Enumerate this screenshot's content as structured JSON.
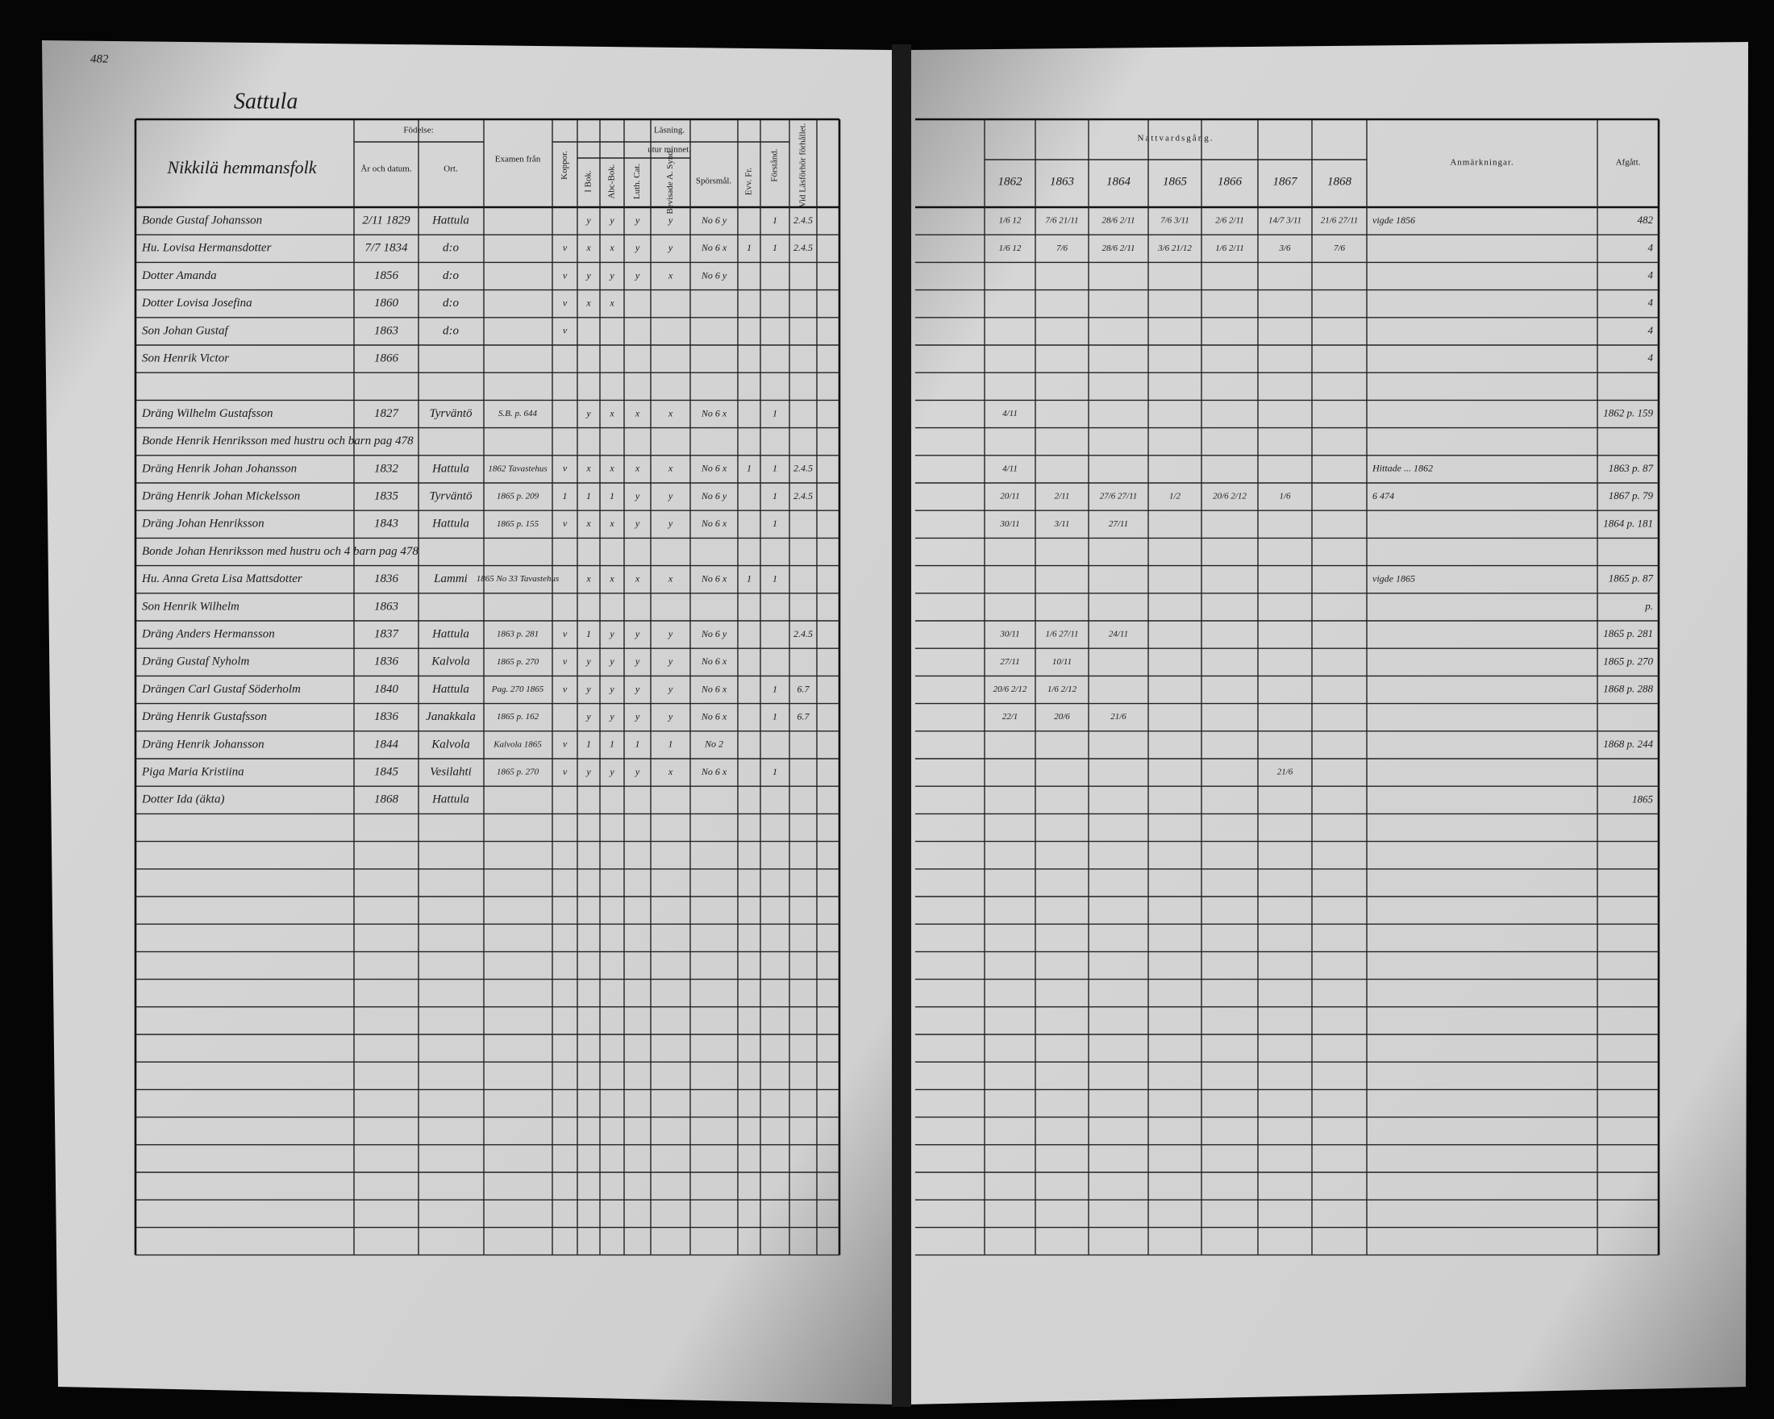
{
  "page_number": "482",
  "village": "Sattula",
  "left_header": {
    "household": "Nikkilä hemmansfolk",
    "birth": "Födelse:",
    "birth_date": "År och datum.",
    "birth_place": "Ort.",
    "exam": "Examen från",
    "vaccination": "Koppor.",
    "reading": "Läsning.",
    "by_heart": "utur minnet.",
    "in_book": "I Bok.",
    "abc_book": "Abc-Bok.",
    "luth_cat": "Luth. Cat.",
    "sins": "Bevisade A. Synd.",
    "questions": "Spörsmål.",
    "gospel": "Evv. Fr.",
    "understanding": "Förstånd.",
    "at_exam": "Vid Läsförhör förhållet."
  },
  "right_header": {
    "communion": "Nattvardsgång.",
    "years": [
      "1862",
      "1863",
      "1864",
      "1865",
      "1866",
      "1867",
      "1868"
    ],
    "remarks": "Anmärkningar.",
    "departed": "Afgått."
  },
  "rows": [
    {
      "name": "Bonde Gustaf Johansson",
      "birth": "2/11 1829",
      "place": "Hattula",
      "reading": [
        null,
        "y",
        "y",
        "y",
        "y",
        "No 6 y",
        null,
        "1",
        "2.4.5"
      ],
      "communion": [
        "1/6 12",
        "7/6 21/11",
        "28/6 2/11",
        "7/6 3/11",
        "2/6 2/11",
        "14/7 3/11",
        "21/6 27/11"
      ],
      "remarks": "vigde 1856",
      "departed": "482"
    },
    {
      "name": "Hu. Lovisa Hermansdotter",
      "birth": "7/7 1834",
      "place": "d:o",
      "reading": [
        "v",
        "x",
        "x",
        "y",
        "y",
        "No 6 x",
        "1",
        "1",
        "2.4.5"
      ],
      "communion": [
        "1/6 12",
        "7/6",
        "28/6 2/11",
        "3/6 21/12",
        "1/6 2/11",
        "3/6",
        "7/6"
      ],
      "departed": "4"
    },
    {
      "name": "Dotter Amanda",
      "birth": "1856",
      "place": "d:o",
      "reading": [
        "v",
        "y",
        "y",
        "y",
        "x",
        "No 6 y"
      ],
      "departed": "4"
    },
    {
      "name": "Dotter Lovisa Josefina",
      "birth": "1860",
      "place": "d:o",
      "reading": [
        "v",
        "x",
        "x"
      ],
      "departed": "4"
    },
    {
      "name": "Son Johan Gustaf",
      "birth": "1863",
      "place": "d:o",
      "reading": [
        "v"
      ],
      "departed": "4"
    },
    {
      "name": "Son Henrik Victor",
      "birth": "1866",
      "departed": "4"
    },
    null,
    {
      "name": "Dräng Wilhelm Gustafsson",
      "birth": "1827",
      "place": "Tyrväntö",
      "exam": "S.B. p. 644",
      "reading": [
        null,
        "y",
        "x",
        "x",
        "x",
        "No 6 x",
        null,
        "1"
      ],
      "communion": [
        "4/11"
      ],
      "departed": "1862 p. 159"
    },
    {
      "name": "Bonde Henrik Henriksson med hustru och barn pag 478"
    },
    {
      "name": "Dräng Henrik Johan Johansson",
      "birth": "1832",
      "place": "Hattula",
      "exam": "1862 Tavastehus",
      "reading": [
        "v",
        "x",
        "x",
        "x",
        "x",
        "No 6 x",
        "1",
        "1",
        "2.4.5"
      ],
      "communion": [
        "4/11"
      ],
      "remarks": "Hittade ... 1862",
      "departed": "1863 p. 87"
    },
    {
      "name": "Dräng Henrik Johan Mickelsson",
      "birth": "1835",
      "place": "Tyrväntö",
      "exam": "1865 p. 209",
      "reading": [
        "1",
        "1",
        "1",
        "y",
        "y",
        "No 6 y",
        null,
        "1",
        "2.4.5"
      ],
      "communion": [
        "20/11",
        "2/11",
        "27/6 27/11",
        "1/2",
        "20/6 2/12",
        "1/6"
      ],
      "remarks": "6 474",
      "departed": "1867 p. 79"
    },
    {
      "name": "Dräng Johan Henriksson",
      "birth": "1843",
      "place": "Hattula",
      "exam": "1865 p. 155",
      "reading": [
        "v",
        "x",
        "x",
        "y",
        "y",
        "No 6 x",
        null,
        "1"
      ],
      "communion": [
        "30/11",
        "3/11",
        "27/11"
      ],
      "departed": "1864 p. 181"
    },
    {
      "name": "Bonde Johan Henriksson med hustru och 4 barn pag 478"
    },
    {
      "name": "Hu. Anna Greta Lisa Mattsdotter",
      "birth": "1836",
      "place": "Lammi",
      "exam": "1865 No 33 Tavastehus",
      "reading": [
        null,
        "x",
        "x",
        "x",
        "x",
        "No 6 x",
        "1",
        "1"
      ],
      "remarks": "vigde 1865",
      "departed": "1865 p. 87"
    },
    {
      "name": "Son Henrik Wilhelm",
      "birth": "1863",
      "departed": "p."
    },
    {
      "name": "Dräng Anders Hermansson",
      "birth": "1837",
      "place": "Hattula",
      "exam": "1863 p. 281",
      "reading": [
        "v",
        "1",
        "y",
        "y",
        "y",
        "No 6 y",
        null,
        null,
        "2.4.5"
      ],
      "communion": [
        "30/11",
        "1/6 27/11",
        "24/11"
      ],
      "departed": "1865 p. 281"
    },
    {
      "name": "Dräng Gustaf Nyholm",
      "birth": "1836",
      "place": "Kalvola",
      "exam": "1865 p. 270",
      "reading": [
        "v",
        "y",
        "y",
        "y",
        "y",
        "No 6 x"
      ],
      "communion": [
        "27/11",
        "10/11"
      ],
      "departed": "1865 p. 270"
    },
    {
      "name": "Drängen Carl Gustaf Söderholm",
      "birth": "1840",
      "place": "Hattula",
      "exam": "Pag. 270 1865",
      "reading": [
        "v",
        "y",
        "y",
        "y",
        "y",
        "No 6 x",
        null,
        "1",
        "6.7"
      ],
      "communion": [
        "20/6 2/12",
        "1/6 2/12"
      ],
      "departed": "1868 p. 288"
    },
    {
      "name": "Dräng Henrik Gustafsson",
      "birth": "1836",
      "place": "Janakkala",
      "exam": "1865 p. 162",
      "reading": [
        null,
        "y",
        "y",
        "y",
        "y",
        "No 6 x",
        null,
        "1",
        "6.7"
      ],
      "communion": [
        "22/1",
        "20/6",
        "21/6"
      ],
      "departed": null
    },
    {
      "name": "Dräng Henrik Johansson",
      "birth": "1844",
      "place": "Kalvola",
      "exam": "Kalvola 1865",
      "reading": [
        "v",
        "1",
        "1",
        "1",
        "1",
        "No 2"
      ],
      "departed": "1868 p. 244"
    },
    {
      "name": "Piga Maria Kristiina",
      "birth": "1845",
      "place": "Vesilahti",
      "exam": "1865 p. 270",
      "reading": [
        "v",
        "y",
        "y",
        "y",
        "x",
        "No 6 x",
        null,
        "1"
      ],
      "communion": [
        null,
        null,
        null,
        null,
        null,
        "21/6"
      ]
    },
    {
      "name": "Dotter Ida (äkta)",
      "birth": "1868",
      "place": "Hattula",
      "departed": "1865"
    }
  ]
}
